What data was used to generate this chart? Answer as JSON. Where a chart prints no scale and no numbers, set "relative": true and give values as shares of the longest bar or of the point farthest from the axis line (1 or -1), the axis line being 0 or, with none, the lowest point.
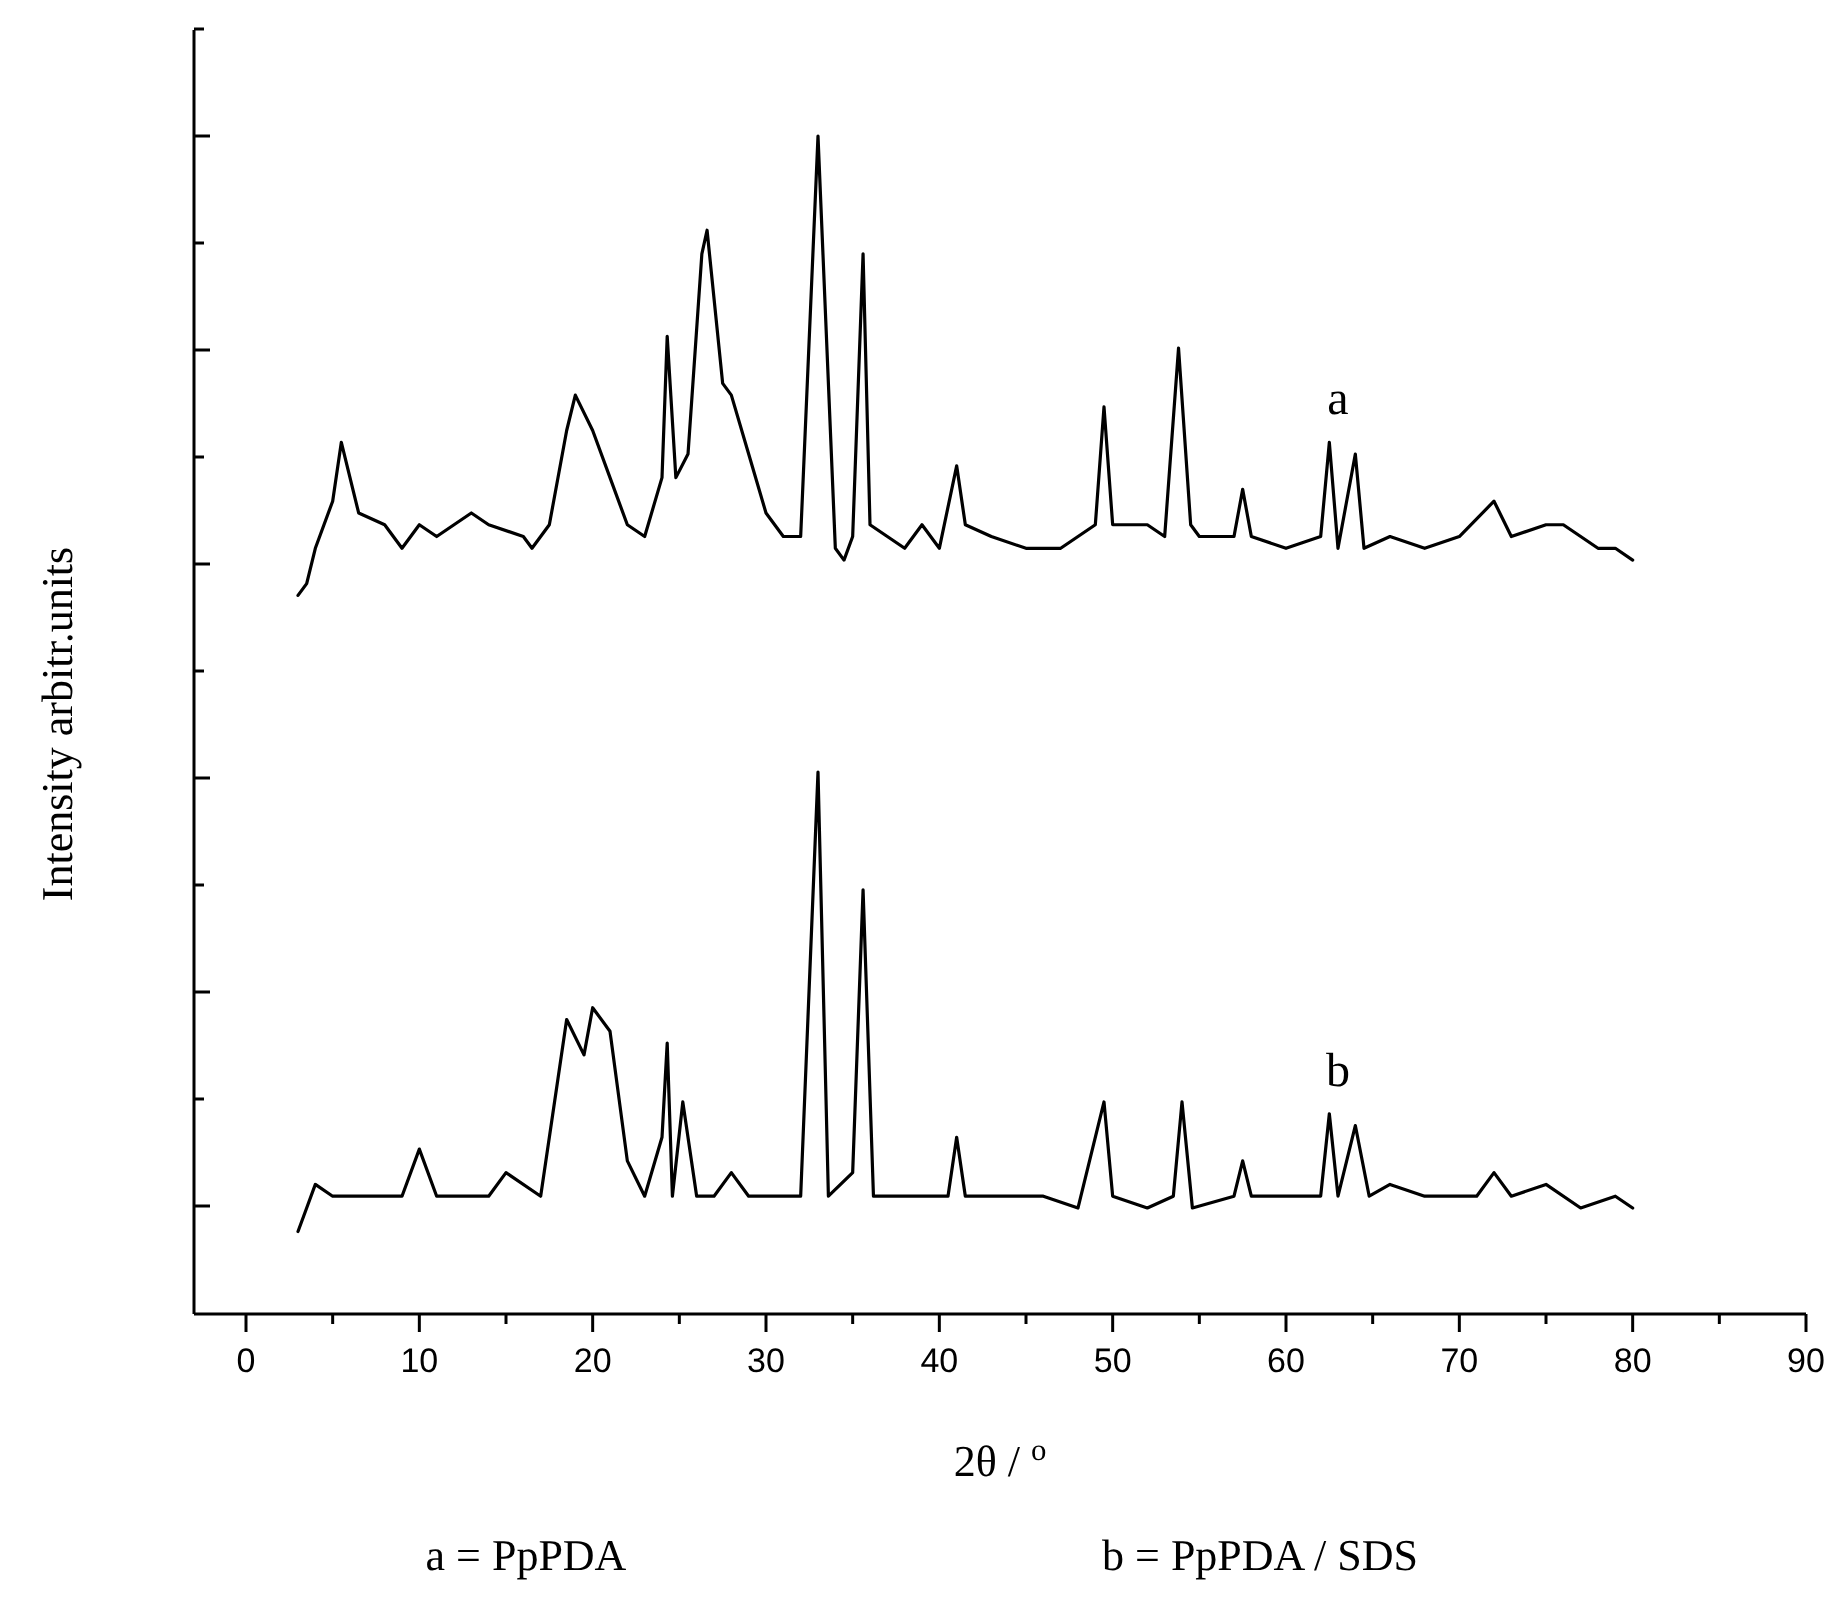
{
  "chart_data": {
    "type": "line",
    "relative": true,
    "xlabel": "2θ / $^{o}$",
    "ylabel": "Intensity arbitr.units",
    "xlim": [
      -3,
      90
    ],
    "xticks": [
      0,
      {
        "value": 5,
        "label": null
      },
      10,
      {
        "value": 15,
        "label": null
      },
      20,
      {
        "value": 25,
        "label": null
      },
      30,
      {
        "value": 35,
        "label": null
      },
      40,
      {
        "value": 45,
        "label": null
      },
      50,
      {
        "value": 55,
        "label": null
      },
      60,
      {
        "value": 65,
        "label": null
      },
      70,
      {
        "value": 75,
        "label": null
      },
      80,
      {
        "value": 85,
        "label": null
      },
      90
    ],
    "grid": false,
    "marker": "none",
    "line_style": "solid",
    "annotations": [
      "a = PpPDA",
      "b = PpPDA / SDS"
    ],
    "series": [
      {
        "name": "a",
        "color": "#000000",
        "x": [
          3,
          3.5,
          4,
          5,
          5.5,
          6.5,
          8,
          9,
          10,
          11,
          12,
          13,
          14,
          16,
          16.5,
          17.5,
          18.5,
          19,
          20,
          21,
          22,
          23,
          24,
          24.3,
          24.8,
          25.5,
          26.3,
          26.6,
          27.5,
          28,
          29,
          30,
          31,
          32,
          33,
          34,
          34.5,
          35,
          35.6,
          36,
          37,
          38,
          39,
          40,
          41,
          41.5,
          43,
          45,
          47,
          49,
          49.5,
          50,
          51,
          52,
          53,
          53.8,
          54.5,
          55,
          57,
          57.5,
          58,
          60,
          62,
          62.5,
          63,
          64,
          64.5,
          66,
          68,
          70,
          72,
          73,
          75,
          76,
          78,
          79,
          80
        ],
        "values": [
          0.61,
          0.62,
          0.65,
          0.69,
          0.74,
          0.68,
          0.67,
          0.65,
          0.67,
          0.66,
          0.67,
          0.68,
          0.67,
          0.66,
          0.65,
          0.67,
          0.75,
          0.78,
          0.75,
          0.71,
          0.67,
          0.66,
          0.71,
          0.83,
          0.71,
          0.73,
          0.9,
          0.92,
          0.79,
          0.78,
          0.73,
          0.68,
          0.66,
          0.66,
          1,
          0.65,
          0.64,
          0.66,
          0.9,
          0.67,
          0.66,
          0.65,
          0.67,
          0.65,
          0.72,
          0.67,
          0.66,
          0.65,
          0.65,
          0.67,
          0.77,
          0.67,
          0.67,
          0.67,
          0.66,
          0.82,
          0.67,
          0.66,
          0.66,
          0.7,
          0.66,
          0.65,
          0.66,
          0.74,
          0.65,
          0.73,
          0.65,
          0.66,
          0.65,
          0.66,
          0.69,
          0.66,
          0.67,
          0.67,
          0.65,
          0.65,
          0.64
        ]
      },
      {
        "name": "b",
        "color": "#000000",
        "x": [
          3,
          3.5,
          4,
          5,
          7,
          8,
          9,
          10,
          11,
          12,
          14,
          15,
          17,
          18,
          18.5,
          19.5,
          20,
          21,
          22,
          23,
          24,
          24.3,
          24.6,
          25.2,
          26,
          27,
          28,
          29,
          32,
          33,
          33.6,
          35,
          35.6,
          36.2,
          38,
          40.5,
          41,
          41.5,
          44,
          46,
          48,
          49.5,
          50,
          52,
          53.5,
          54,
          54.6,
          57,
          57.5,
          58,
          61,
          62,
          62.5,
          63,
          64,
          64.8,
          66,
          68,
          71,
          72,
          73,
          75,
          77,
          79,
          80
        ],
        "values": [
          0.07,
          0.09,
          0.11,
          0.1,
          0.1,
          0.1,
          0.1,
          0.14,
          0.1,
          0.1,
          0.1,
          0.12,
          0.1,
          0.2,
          0.25,
          0.22,
          0.26,
          0.24,
          0.13,
          0.1,
          0.15,
          0.23,
          0.1,
          0.18,
          0.1,
          0.1,
          0.12,
          0.1,
          0.1,
          0.46,
          0.1,
          0.12,
          0.36,
          0.1,
          0.1,
          0.1,
          0.15,
          0.1,
          0.1,
          0.1,
          0.09,
          0.18,
          0.1,
          0.09,
          0.1,
          0.18,
          0.09,
          0.1,
          0.13,
          0.1,
          0.1,
          0.1,
          0.17,
          0.1,
          0.16,
          0.1,
          0.11,
          0.1,
          0.1,
          0.12,
          0.1,
          0.11,
          0.09,
          0.1,
          0.09
        ]
      }
    ]
  }
}
